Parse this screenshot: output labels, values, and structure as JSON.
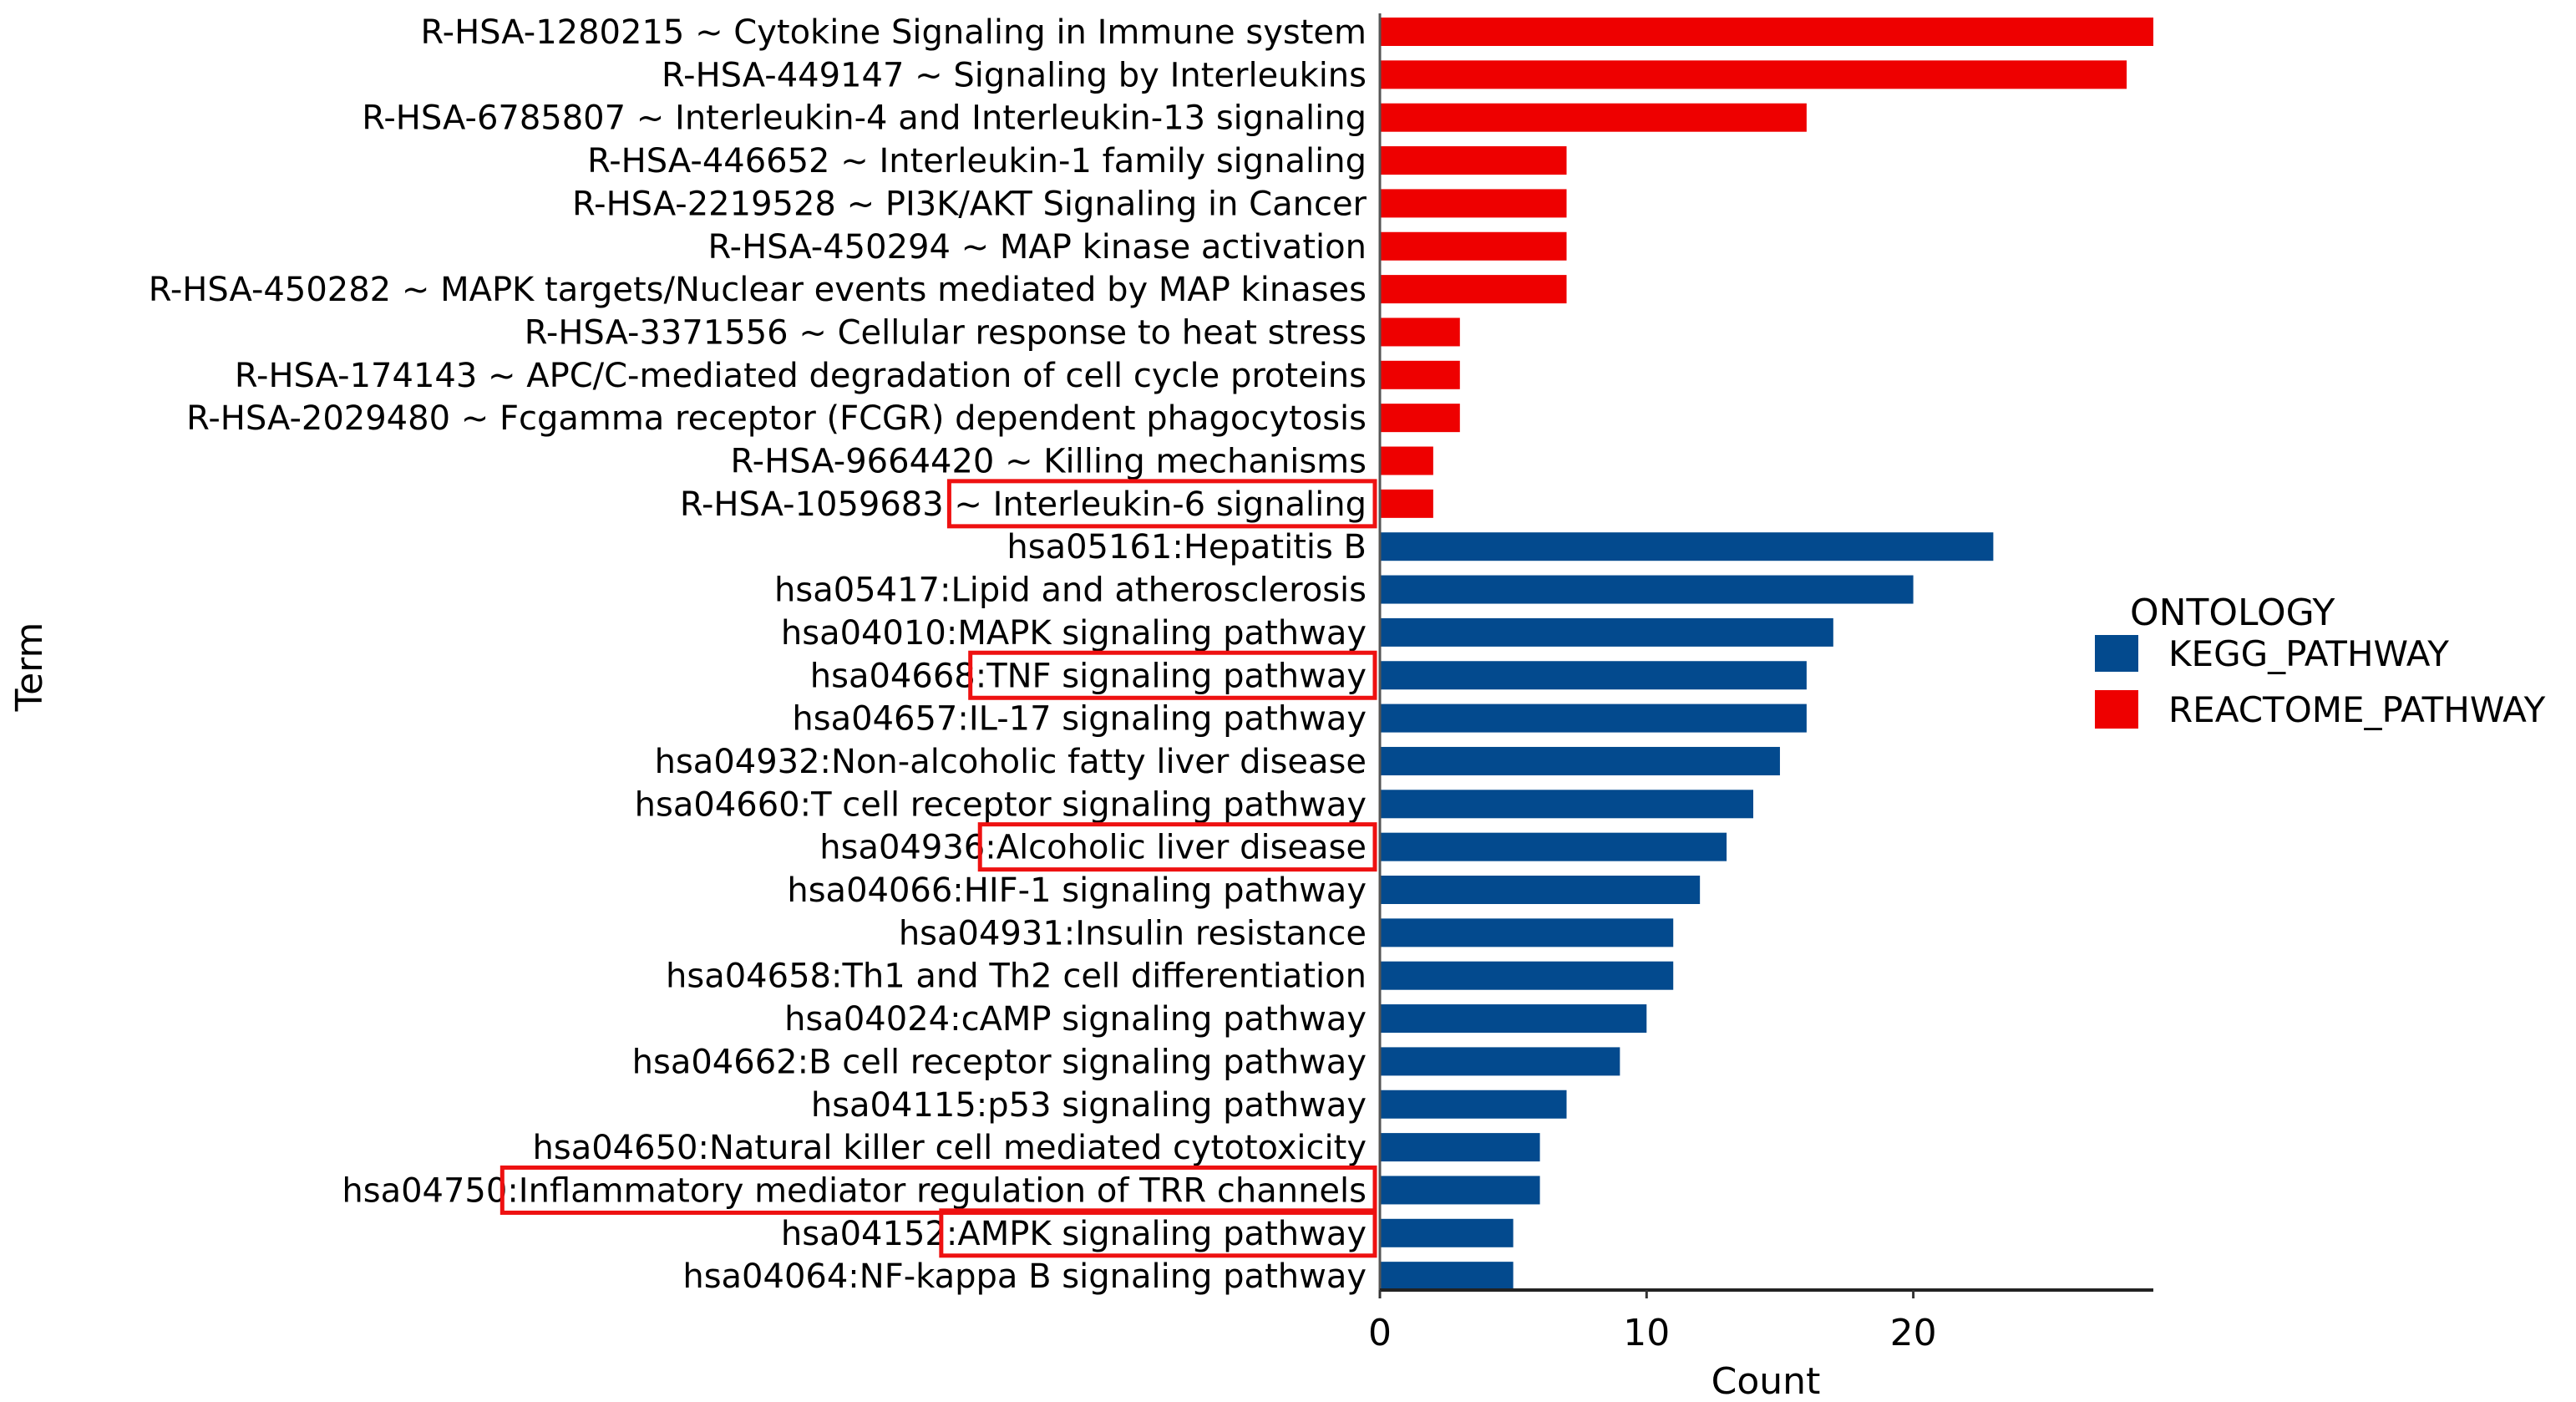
{
  "chart_data": {
    "type": "bar",
    "orientation": "horizontal",
    "title": "",
    "xlabel": "Count",
    "ylabel": "Term",
    "xlim": [
      0,
      29
    ],
    "xticks": [
      0,
      10,
      20
    ],
    "grid": false,
    "legend": {
      "title": "ONTOLOGY",
      "placement": "right",
      "entries": [
        {
          "name": "KEGG_PATHWAY",
          "color": "#034A8E"
        },
        {
          "name": "REACTOME_PATHWAY",
          "color": "#EE0000"
        }
      ]
    },
    "colors": {
      "KEGG_PATHWAY": "#034A8E",
      "REACTOME_PATHWAY": "#EE0000",
      "highlight": "#EE1111"
    },
    "categories": [
      "R-HSA-1280215 ~ Cytokine Signaling in Immune system",
      "R-HSA-449147 ~ Signaling by Interleukins",
      "R-HSA-6785807 ~ Interleukin-4 and Interleukin-13 signaling",
      "R-HSA-446652 ~ Interleukin-1 family signaling",
      "R-HSA-2219528 ~ PI3K/AKT Signaling in Cancer",
      "R-HSA-450294 ~ MAP kinase activation",
      "R-HSA-450282 ~ MAPK targets/Nuclear events mediated by MAP kinases",
      "R-HSA-3371556 ~ Cellular response to heat stress",
      "R-HSA-174143 ~ APC/C-mediated degradation of cell cycle proteins",
      "R-HSA-2029480 ~ Fcgamma receptor (FCGR) dependent phagocytosis",
      "R-HSA-9664420 ~ Killing mechanisms",
      "R-HSA-1059683 ~ Interleukin-6 signaling",
      "hsa05161:Hepatitis B",
      "hsa05417:Lipid and atherosclerosis",
      "hsa04010:MAPK signaling pathway",
      "hsa04668:TNF signaling pathway",
      "hsa04657:IL-17 signaling pathway",
      "hsa04932:Non-alcoholic fatty liver disease",
      "hsa04660:T cell receptor signaling pathway",
      "hsa04936:Alcoholic liver disease",
      "hsa04066:HIF-1 signaling pathway",
      "hsa04931:Insulin resistance",
      "hsa04658:Th1 and Th2 cell differentiation",
      "hsa04024:cAMP signaling pathway",
      "hsa04662:B cell receptor signaling pathway",
      "hsa04115:p53 signaling pathway",
      "hsa04650:Natural killer cell mediated cytotoxicity",
      "hsa04750:Inflammatory mediator regulation of TRR channels",
      "hsa04152:AMPK signaling pathway",
      "hsa04064:NF-kappa B signaling pathway"
    ],
    "values": [
      29,
      28,
      16,
      7,
      7,
      7,
      7,
      3,
      3,
      3,
      2,
      2,
      23,
      20,
      17,
      16,
      16,
      15,
      14,
      13,
      12,
      11,
      11,
      10,
      9,
      7,
      6,
      6,
      5,
      5
    ],
    "groups": [
      "REACTOME_PATHWAY",
      "REACTOME_PATHWAY",
      "REACTOME_PATHWAY",
      "REACTOME_PATHWAY",
      "REACTOME_PATHWAY",
      "REACTOME_PATHWAY",
      "REACTOME_PATHWAY",
      "REACTOME_PATHWAY",
      "REACTOME_PATHWAY",
      "REACTOME_PATHWAY",
      "REACTOME_PATHWAY",
      "REACTOME_PATHWAY",
      "KEGG_PATHWAY",
      "KEGG_PATHWAY",
      "KEGG_PATHWAY",
      "KEGG_PATHWAY",
      "KEGG_PATHWAY",
      "KEGG_PATHWAY",
      "KEGG_PATHWAY",
      "KEGG_PATHWAY",
      "KEGG_PATHWAY",
      "KEGG_PATHWAY",
      "KEGG_PATHWAY",
      "KEGG_PATHWAY",
      "KEGG_PATHWAY",
      "KEGG_PATHWAY",
      "KEGG_PATHWAY",
      "KEGG_PATHWAY",
      "KEGG_PATHWAY",
      "KEGG_PATHWAY"
    ],
    "annotations": [
      {
        "type": "highlight-box",
        "category_index": 11,
        "highlighted_text": "~ Interleukin-6 signaling"
      },
      {
        "type": "highlight-box",
        "category_index": 15,
        "highlighted_text": ":TNF signaling pathway"
      },
      {
        "type": "highlight-box",
        "category_index": 19,
        "highlighted_text": ":Alcoholic liver disease"
      },
      {
        "type": "highlight-box",
        "category_index": 27,
        "highlighted_text": ":Inflammatory mediator regulation of TRR channels"
      },
      {
        "type": "highlight-box",
        "category_index": 28,
        "highlighted_text": ":AMPK signaling pathway"
      }
    ]
  }
}
